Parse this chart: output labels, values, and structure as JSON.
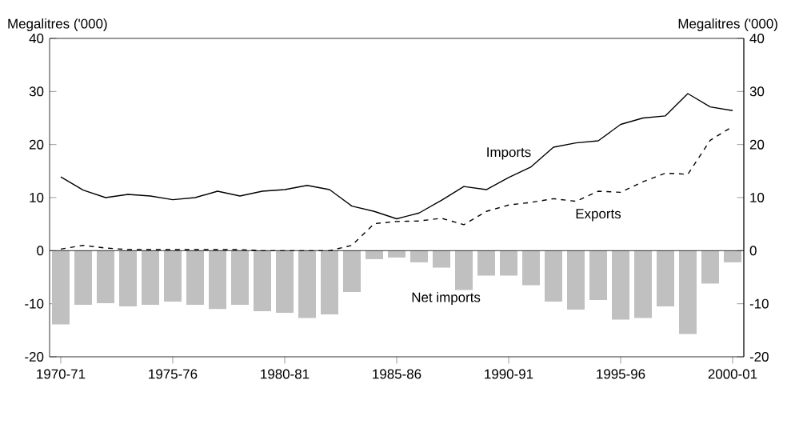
{
  "chart_data": {
    "type": "bar",
    "ylabel": "Megalitres ('000)",
    "y2label": "Megalitres ('000)",
    "categories": [
      "1970-71",
      null,
      null,
      null,
      null,
      "1975-76",
      null,
      null,
      null,
      null,
      "1980-81",
      null,
      null,
      null,
      null,
      "1985-86",
      null,
      null,
      null,
      null,
      "1990-91",
      null,
      null,
      null,
      null,
      "1995-96",
      null,
      null,
      null,
      null,
      "2000-01"
    ],
    "series": [
      {
        "name": "Net imports",
        "color": "#c0c0c0",
        "values": [
          -13.9,
          -10.2,
          -9.9,
          -10.5,
          -10.2,
          -9.6,
          -10.2,
          -11.0,
          -10.2,
          -11.4,
          -11.7,
          -12.7,
          -12.0,
          -7.8,
          -1.6,
          -1.3,
          -2.2,
          -3.2,
          -7.4,
          -4.7,
          -4.7,
          -6.5,
          -9.6,
          -11.1,
          -9.3,
          -13.0,
          -12.7,
          -10.5,
          -15.7,
          -6.2,
          -2.2
        ]
      },
      {
        "name": "Imports",
        "type": "line",
        "color": "#000000",
        "line_style": "solid",
        "values": [
          13.9,
          11.4,
          10.0,
          10.6,
          10.3,
          9.6,
          10.0,
          11.2,
          10.3,
          11.2,
          11.5,
          12.3,
          11.5,
          8.4,
          7.4,
          6.0,
          7.1,
          9.5,
          12.1,
          11.5,
          13.8,
          15.8,
          19.5,
          20.3,
          20.7,
          23.8,
          25.0,
          25.4,
          29.6,
          27.1,
          26.4
        ]
      },
      {
        "name": "Exports",
        "type": "line",
        "color": "#000000",
        "line_style": "dashed",
        "values": [
          0.3,
          1.0,
          0.5,
          0.2,
          0.2,
          0.2,
          0.2,
          0.2,
          0.2,
          0,
          0,
          0,
          0,
          1.0,
          5.1,
          5.5,
          5.6,
          6.1,
          4.9,
          7.4,
          8.6,
          9.1,
          9.8,
          9.3,
          11.2,
          11.0,
          13.0,
          14.6,
          14.4,
          20.8,
          23.4
        ]
      }
    ],
    "ylim": [
      -20,
      40
    ],
    "yticks": [
      -20,
      -10,
      0,
      10,
      20,
      30,
      40
    ],
    "y2lim": [
      -20,
      40
    ],
    "y2ticks": [
      -20,
      -10,
      0,
      10,
      20,
      30,
      40
    ],
    "ref_lines": [
      {
        "axis": "y",
        "value": 0,
        "color": "#000000"
      }
    ],
    "grid": false,
    "legend": false
  }
}
